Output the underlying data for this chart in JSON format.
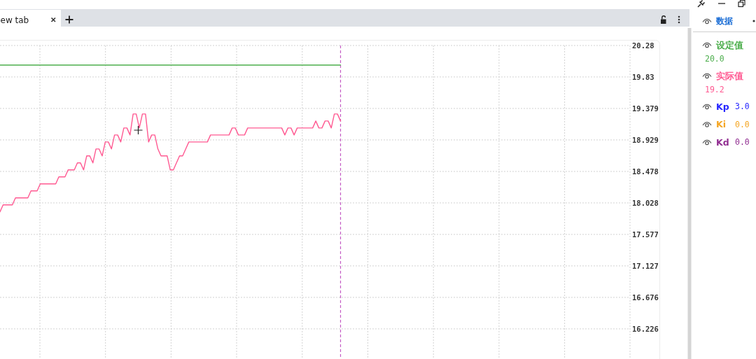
{
  "chart_data": {
    "type": "line",
    "title": "ew tab",
    "legend_title": "数据",
    "categories": [
      null,
      null,
      null,
      null,
      null,
      null,
      null,
      null,
      null,
      null,
      null,
      null,
      null,
      null,
      null,
      null,
      null,
      null,
      null,
      null,
      null,
      null,
      null,
      null,
      null,
      null,
      null,
      null,
      null,
      null,
      null,
      null,
      null,
      null,
      null,
      null,
      null,
      null,
      null,
      null,
      null,
      null,
      null,
      null,
      null,
      null,
      null,
      null,
      null,
      null,
      null,
      null,
      null,
      null,
      null,
      null,
      null,
      null,
      null,
      null,
      null,
      null,
      null,
      null,
      null,
      null,
      null,
      null,
      null,
      null,
      null,
      null,
      null,
      null,
      null,
      null,
      null,
      null,
      null,
      null,
      null,
      null,
      null,
      null,
      null,
      null,
      null,
      null,
      null,
      null,
      null,
      null,
      null,
      null,
      null,
      null,
      null,
      null,
      null,
      null,
      null,
      null,
      null,
      null,
      null,
      null,
      null,
      null,
      null,
      null,
      null,
      null,
      null,
      null,
      null,
      null,
      null,
      null,
      null,
      null,
      null,
      null,
      null,
      null,
      null,
      null,
      null,
      null,
      null,
      null,
      null,
      null,
      null,
      null,
      null,
      null,
      null,
      null,
      null,
      null,
      null,
      null,
      null,
      null,
      null,
      null,
      null,
      null,
      null,
      null,
      null,
      null,
      null,
      null,
      null,
      null,
      null,
      null,
      null,
      null,
      null,
      null,
      null,
      null,
      null,
      null,
      null,
      null,
      null,
      null,
      null,
      null,
      null,
      null,
      null,
      null,
      null,
      null,
      null,
      null,
      null,
      null,
      null,
      null,
      null,
      null,
      null,
      null,
      null,
      null,
      null,
      null,
      null,
      null,
      null,
      null,
      null,
      null,
      null,
      null,
      null,
      null,
      null,
      null
    ],
    "series": [
      {
        "name": "设定值",
        "color": "#4cae4c",
        "values": [
          20,
          20,
          20,
          20,
          20,
          20,
          20,
          20,
          20,
          20,
          20,
          20,
          20,
          20,
          20,
          20,
          20,
          20,
          20,
          20,
          20,
          20,
          20,
          20,
          20,
          20,
          20,
          20,
          20,
          20,
          20,
          20,
          20,
          20,
          20,
          20,
          20,
          20,
          20,
          20,
          20,
          20,
          20,
          20,
          20,
          20,
          20,
          20,
          20,
          20,
          20,
          20,
          20,
          20,
          20,
          20,
          20,
          20,
          20,
          20,
          20,
          20,
          20,
          20,
          20,
          20,
          20,
          20,
          20,
          20,
          20,
          20,
          20,
          20,
          20,
          20,
          20,
          20,
          20,
          20,
          20,
          20,
          20,
          20,
          20,
          20,
          20,
          20,
          20,
          20,
          20,
          20,
          20,
          20,
          20,
          20,
          20,
          20,
          20,
          20,
          20,
          20,
          20,
          20,
          20,
          20,
          20,
          20,
          20,
          20,
          20,
          null,
          null,
          null,
          null,
          null,
          null,
          null,
          null,
          null,
          null,
          null,
          null,
          null,
          null,
          null,
          null,
          null,
          null,
          null,
          null,
          null,
          null,
          null,
          null,
          null,
          null,
          null,
          null,
          null,
          null,
          null,
          null,
          null,
          null,
          null,
          null,
          null,
          null,
          null,
          null,
          null,
          null,
          null,
          null,
          null,
          null,
          null,
          null,
          null,
          null,
          null,
          null,
          null,
          null,
          null,
          null,
          null,
          null,
          null,
          null,
          null,
          null,
          null,
          null,
          null,
          null,
          null,
          null,
          null,
          null,
          null,
          null,
          null,
          null,
          null,
          null,
          null,
          null,
          null,
          null,
          null,
          null,
          null,
          null,
          null,
          null,
          null,
          null,
          null,
          null,
          null,
          null,
          null
        ]
      },
      {
        "name": "实际值",
        "color": "#ff5a92",
        "values": [
          17.9,
          18.0,
          18.0,
          18.0,
          18.0,
          18.1,
          18.1,
          18.1,
          18.1,
          18.1,
          18.2,
          18.2,
          18.2,
          18.3,
          18.3,
          18.3,
          18.3,
          18.3,
          18.3,
          18.4,
          18.4,
          18.4,
          18.5,
          18.5,
          18.5,
          18.6,
          18.6,
          18.5,
          18.7,
          18.7,
          18.6,
          18.8,
          18.8,
          18.7,
          18.9,
          18.9,
          18.8,
          19.0,
          19.0,
          18.9,
          19.1,
          19.1,
          19.0,
          19.3,
          19.3,
          19.1,
          19.3,
          19.3,
          18.9,
          19.0,
          19.0,
          18.8,
          18.7,
          18.7,
          18.7,
          18.5,
          18.5,
          18.6,
          18.7,
          18.7,
          18.8,
          18.9,
          18.9,
          18.9,
          18.9,
          18.9,
          18.9,
          18.9,
          19.0,
          19.0,
          19.0,
          19.0,
          19.0,
          19.0,
          19.0,
          19.1,
          19.1,
          19.0,
          19.0,
          19.0,
          19.1,
          19.1,
          19.1,
          19.1,
          19.1,
          19.1,
          19.1,
          19.1,
          19.1,
          19.1,
          19.1,
          19.1,
          19.0,
          19.1,
          19.1,
          19.0,
          19.1,
          19.1,
          19.1,
          19.1,
          19.1,
          19.1,
          19.2,
          19.1,
          19.1,
          19.2,
          19.2,
          19.1,
          19.3,
          19.3,
          19.2,
          null,
          null,
          null,
          null,
          null,
          null,
          null,
          null,
          null,
          null,
          null,
          null,
          null,
          null,
          null,
          null,
          null,
          null,
          null,
          null,
          null,
          null,
          null,
          null,
          null,
          null,
          null,
          null,
          null,
          null,
          null,
          null,
          null,
          null,
          null,
          null,
          null,
          null,
          null,
          null,
          null,
          null,
          null,
          null,
          null,
          null,
          null,
          null,
          null,
          null,
          null,
          null,
          null,
          null,
          null,
          null,
          null,
          null,
          null,
          null,
          null,
          null,
          null,
          null,
          null,
          null,
          null,
          null,
          null,
          null,
          null,
          null,
          null,
          null,
          null,
          null,
          null,
          null,
          null,
          null,
          null,
          null,
          null,
          null,
          null,
          null,
          null,
          null,
          null,
          null,
          null,
          null,
          null
        ]
      }
    ],
    "ylim": [
      15.8,
      20.28
    ],
    "yticks": [
      16.226,
      16.676,
      17.127,
      17.577,
      18.028,
      18.478,
      18.929,
      19.379,
      19.83,
      20.28
    ],
    "grid": true,
    "legend": "right",
    "line_style": "solid",
    "annotations": [
      "20.0",
      "19.2",
      "Kp",
      "3.0",
      "Ki",
      "0.0",
      "Kd",
      "0.0"
    ]
  }
}
